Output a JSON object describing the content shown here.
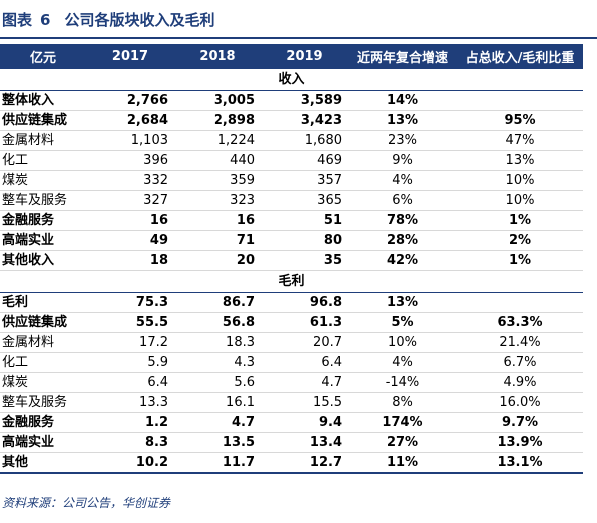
{
  "title": {
    "label": "图表",
    "number": "6",
    "text": "公司各版块收入及毛利"
  },
  "header": [
    "亿元",
    "2017",
    "2018",
    "2019",
    "近两年复合增速",
    "占总收入/毛利比重"
  ],
  "sections": [
    {
      "name": "收入",
      "rows": [
        {
          "bold": true,
          "cells": [
            "整体收入",
            "2,766",
            "3,005",
            "3,589",
            "14%",
            ""
          ]
        },
        {
          "bold": true,
          "cells": [
            "供应链集成",
            "2,684",
            "2,898",
            "3,423",
            "13%",
            "95%"
          ]
        },
        {
          "bold": false,
          "cells": [
            "金属材料",
            "1,103",
            "1,224",
            "1,680",
            "23%",
            "47%"
          ]
        },
        {
          "bold": false,
          "cells": [
            "化工",
            "396",
            "440",
            "469",
            "9%",
            "13%"
          ]
        },
        {
          "bold": false,
          "cells": [
            "煤炭",
            "332",
            "359",
            "357",
            "4%",
            "10%"
          ]
        },
        {
          "bold": false,
          "cells": [
            "整车及服务",
            "327",
            "323",
            "365",
            "6%",
            "10%"
          ]
        },
        {
          "bold": true,
          "cells": [
            "金融服务",
            "16",
            "16",
            "51",
            "78%",
            "1%"
          ]
        },
        {
          "bold": true,
          "cells": [
            "高端实业",
            "49",
            "71",
            "80",
            "28%",
            "2%"
          ]
        },
        {
          "bold": true,
          "cells": [
            "其他收入",
            "18",
            "20",
            "35",
            "42%",
            "1%"
          ]
        }
      ]
    },
    {
      "name": "毛利",
      "rows": [
        {
          "bold": true,
          "cells": [
            "毛利",
            "75.3",
            "86.7",
            "96.8",
            "13%",
            ""
          ]
        },
        {
          "bold": true,
          "cells": [
            "供应链集成",
            "55.5",
            "56.8",
            "61.3",
            "5%",
            "63.3%"
          ]
        },
        {
          "bold": false,
          "cells": [
            "金属材料",
            "17.2",
            "18.3",
            "20.7",
            "10%",
            "21.4%"
          ]
        },
        {
          "bold": false,
          "cells": [
            "化工",
            "5.9",
            "4.3",
            "6.4",
            "4%",
            "6.7%"
          ]
        },
        {
          "bold": false,
          "cells": [
            "煤炭",
            "6.4",
            "5.6",
            "4.7",
            "-14%",
            "4.9%"
          ]
        },
        {
          "bold": false,
          "cells": [
            "整车及服务",
            "13.3",
            "16.1",
            "15.5",
            "8%",
            "16.0%"
          ]
        },
        {
          "bold": true,
          "cells": [
            "金融服务",
            "1.2",
            "4.7",
            "9.4",
            "174%",
            "9.7%"
          ]
        },
        {
          "bold": true,
          "cells": [
            "高端实业",
            "8.3",
            "13.5",
            "13.4",
            "27%",
            "13.9%"
          ]
        },
        {
          "bold": true,
          "cells": [
            "其他",
            "10.2",
            "11.7",
            "12.7",
            "11%",
            "13.1%"
          ]
        }
      ]
    }
  ],
  "source": "资料来源：公司公告，华创证券"
}
